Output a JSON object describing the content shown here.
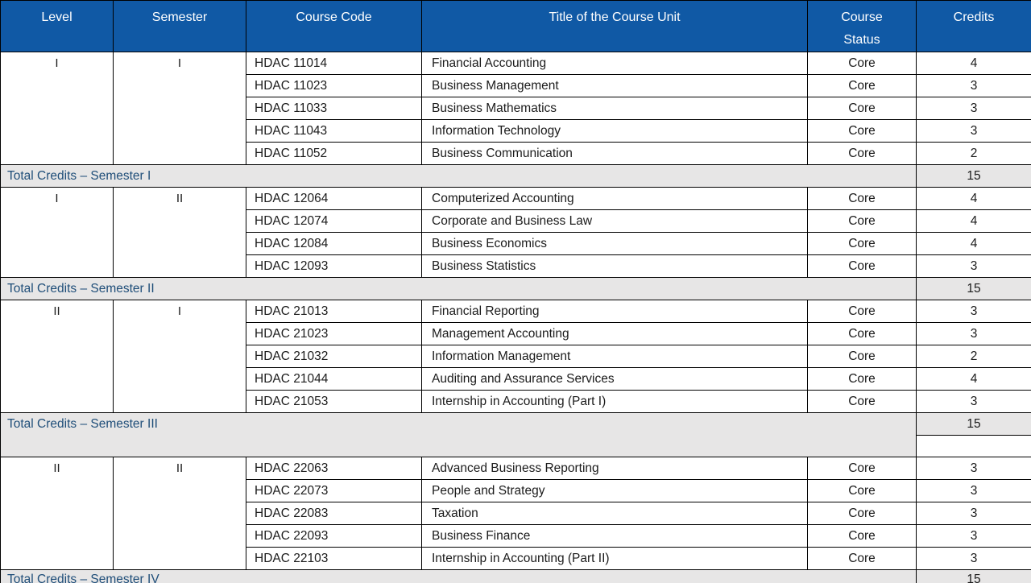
{
  "colors": {
    "header_bg": "#1059A5",
    "header_text": "#FFFFFF",
    "total_row_bg": "#E7E6E6",
    "total_label_color": "#1F4E79",
    "body_text": "#1B1B1B",
    "border": "#000000"
  },
  "table": {
    "headers": [
      "Level",
      "Semester",
      "Course Code",
      "Title of the Course Unit",
      "Course Status",
      "Credits"
    ],
    "groups": [
      {
        "level": "I",
        "semester": "I",
        "courses": [
          {
            "code": "HDAC 11014",
            "title": "Financial Accounting",
            "status": "Core",
            "credits": "4"
          },
          {
            "code": "HDAC 11023",
            "title": "Business Management",
            "status": "Core",
            "credits": "3"
          },
          {
            "code": "HDAC 11033",
            "title": "Business Mathematics",
            "status": "Core",
            "credits": "3"
          },
          {
            "code": "HDAC 11043",
            "title": "Information Technology",
            "status": "Core",
            "credits": "3"
          },
          {
            "code": "HDAC 11052",
            "title": "Business Communication",
            "status": "Core",
            "credits": "2"
          }
        ],
        "total_label": "Total Credits – Semester I",
        "total_credits": "15"
      },
      {
        "level": "I",
        "semester": "II",
        "courses": [
          {
            "code": "HDAC 12064",
            "title": "Computerized Accounting",
            "status": "Core",
            "credits": "4"
          },
          {
            "code": "HDAC 12074",
            "title": "Corporate and Business Law",
            "status": "Core",
            "credits": "4"
          },
          {
            "code": "HDAC 12084",
            "title": "Business Economics",
            "status": "Core",
            "credits": "4"
          },
          {
            "code": "HDAC 12093",
            "title": "Business Statistics",
            "status": "Core",
            "credits": "3"
          }
        ],
        "total_label": "Total Credits – Semester II",
        "total_credits": "15"
      },
      {
        "level": "II",
        "semester": "I",
        "courses": [
          {
            "code": "HDAC 21013",
            "title": "Financial Reporting",
            "status": "Core",
            "credits": "3"
          },
          {
            "code": "HDAC 21023",
            "title": "Management Accounting",
            "status": "Core",
            "credits": "3"
          },
          {
            "code": "HDAC 21032",
            "title": "Information Management",
            "status": "Core",
            "credits": "2"
          },
          {
            "code": "HDAC 21044",
            "title": "Auditing and Assurance Services",
            "status": "Core",
            "credits": "4"
          },
          {
            "code": "HDAC 21053",
            "title": "Internship in Accounting (Part I)",
            "status": "Core",
            "credits": "3"
          }
        ],
        "total_label": "Total Credits – Semester III",
        "total_credits": "15",
        "tall_total": true
      },
      {
        "level": "II",
        "semester": "II",
        "courses": [
          {
            "code": "HDAC 22063",
            "title": "Advanced Business Reporting",
            "status": "Core",
            "credits": "3"
          },
          {
            "code": "HDAC 22073",
            "title": "People and Strategy",
            "status": "Core",
            "credits": "3"
          },
          {
            "code": "HDAC 22083",
            "title": "Taxation",
            "status": "Core",
            "credits": "3"
          },
          {
            "code": "HDAC 22093",
            "title": "Business Finance",
            "status": "Core",
            "credits": "3"
          },
          {
            "code": "HDAC 22103",
            "title": "Internship in Accounting (Part II)",
            "status": "Core",
            "credits": "3"
          }
        ],
        "total_label": "Total Credits – Semester IV",
        "total_credits": "15",
        "last": true
      }
    ]
  }
}
